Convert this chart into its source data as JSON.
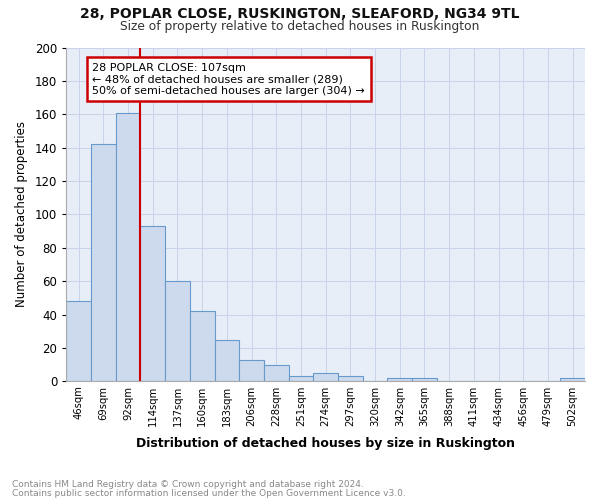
{
  "title1": "28, POPLAR CLOSE, RUSKINGTON, SLEAFORD, NG34 9TL",
  "title2": "Size of property relative to detached houses in Ruskington",
  "xlabel": "Distribution of detached houses by size in Ruskington",
  "ylabel": "Number of detached properties",
  "categories": [
    "46sqm",
    "69sqm",
    "92sqm",
    "114sqm",
    "137sqm",
    "160sqm",
    "183sqm",
    "206sqm",
    "228sqm",
    "251sqm",
    "274sqm",
    "297sqm",
    "320sqm",
    "342sqm",
    "365sqm",
    "388sqm",
    "411sqm",
    "434sqm",
    "456sqm",
    "479sqm",
    "502sqm"
  ],
  "values": [
    48,
    142,
    161,
    93,
    60,
    42,
    25,
    13,
    10,
    3,
    5,
    3,
    0,
    2,
    2,
    0,
    0,
    0,
    0,
    0,
    2
  ],
  "bar_color": "#cddaed",
  "bar_edge_color": "#6699cc",
  "vline_x": 3,
  "vline_color": "#cc0000",
  "annotation_text": "28 POPLAR CLOSE: 107sqm\n← 48% of detached houses are smaller (289)\n50% of semi-detached houses are larger (304) →",
  "annotation_box_color": "#ffffff",
  "annotation_box_edge": "#cc0000",
  "footer1": "Contains HM Land Registry data © Crown copyright and database right 2024.",
  "footer2": "Contains public sector information licensed under the Open Government Licence v3.0.",
  "ylim": [
    0,
    200
  ],
  "yticks": [
    0,
    20,
    40,
    60,
    80,
    100,
    120,
    140,
    160,
    180,
    200
  ],
  "grid_color": "#c8d4e8",
  "bg_color": "#e8eef8"
}
